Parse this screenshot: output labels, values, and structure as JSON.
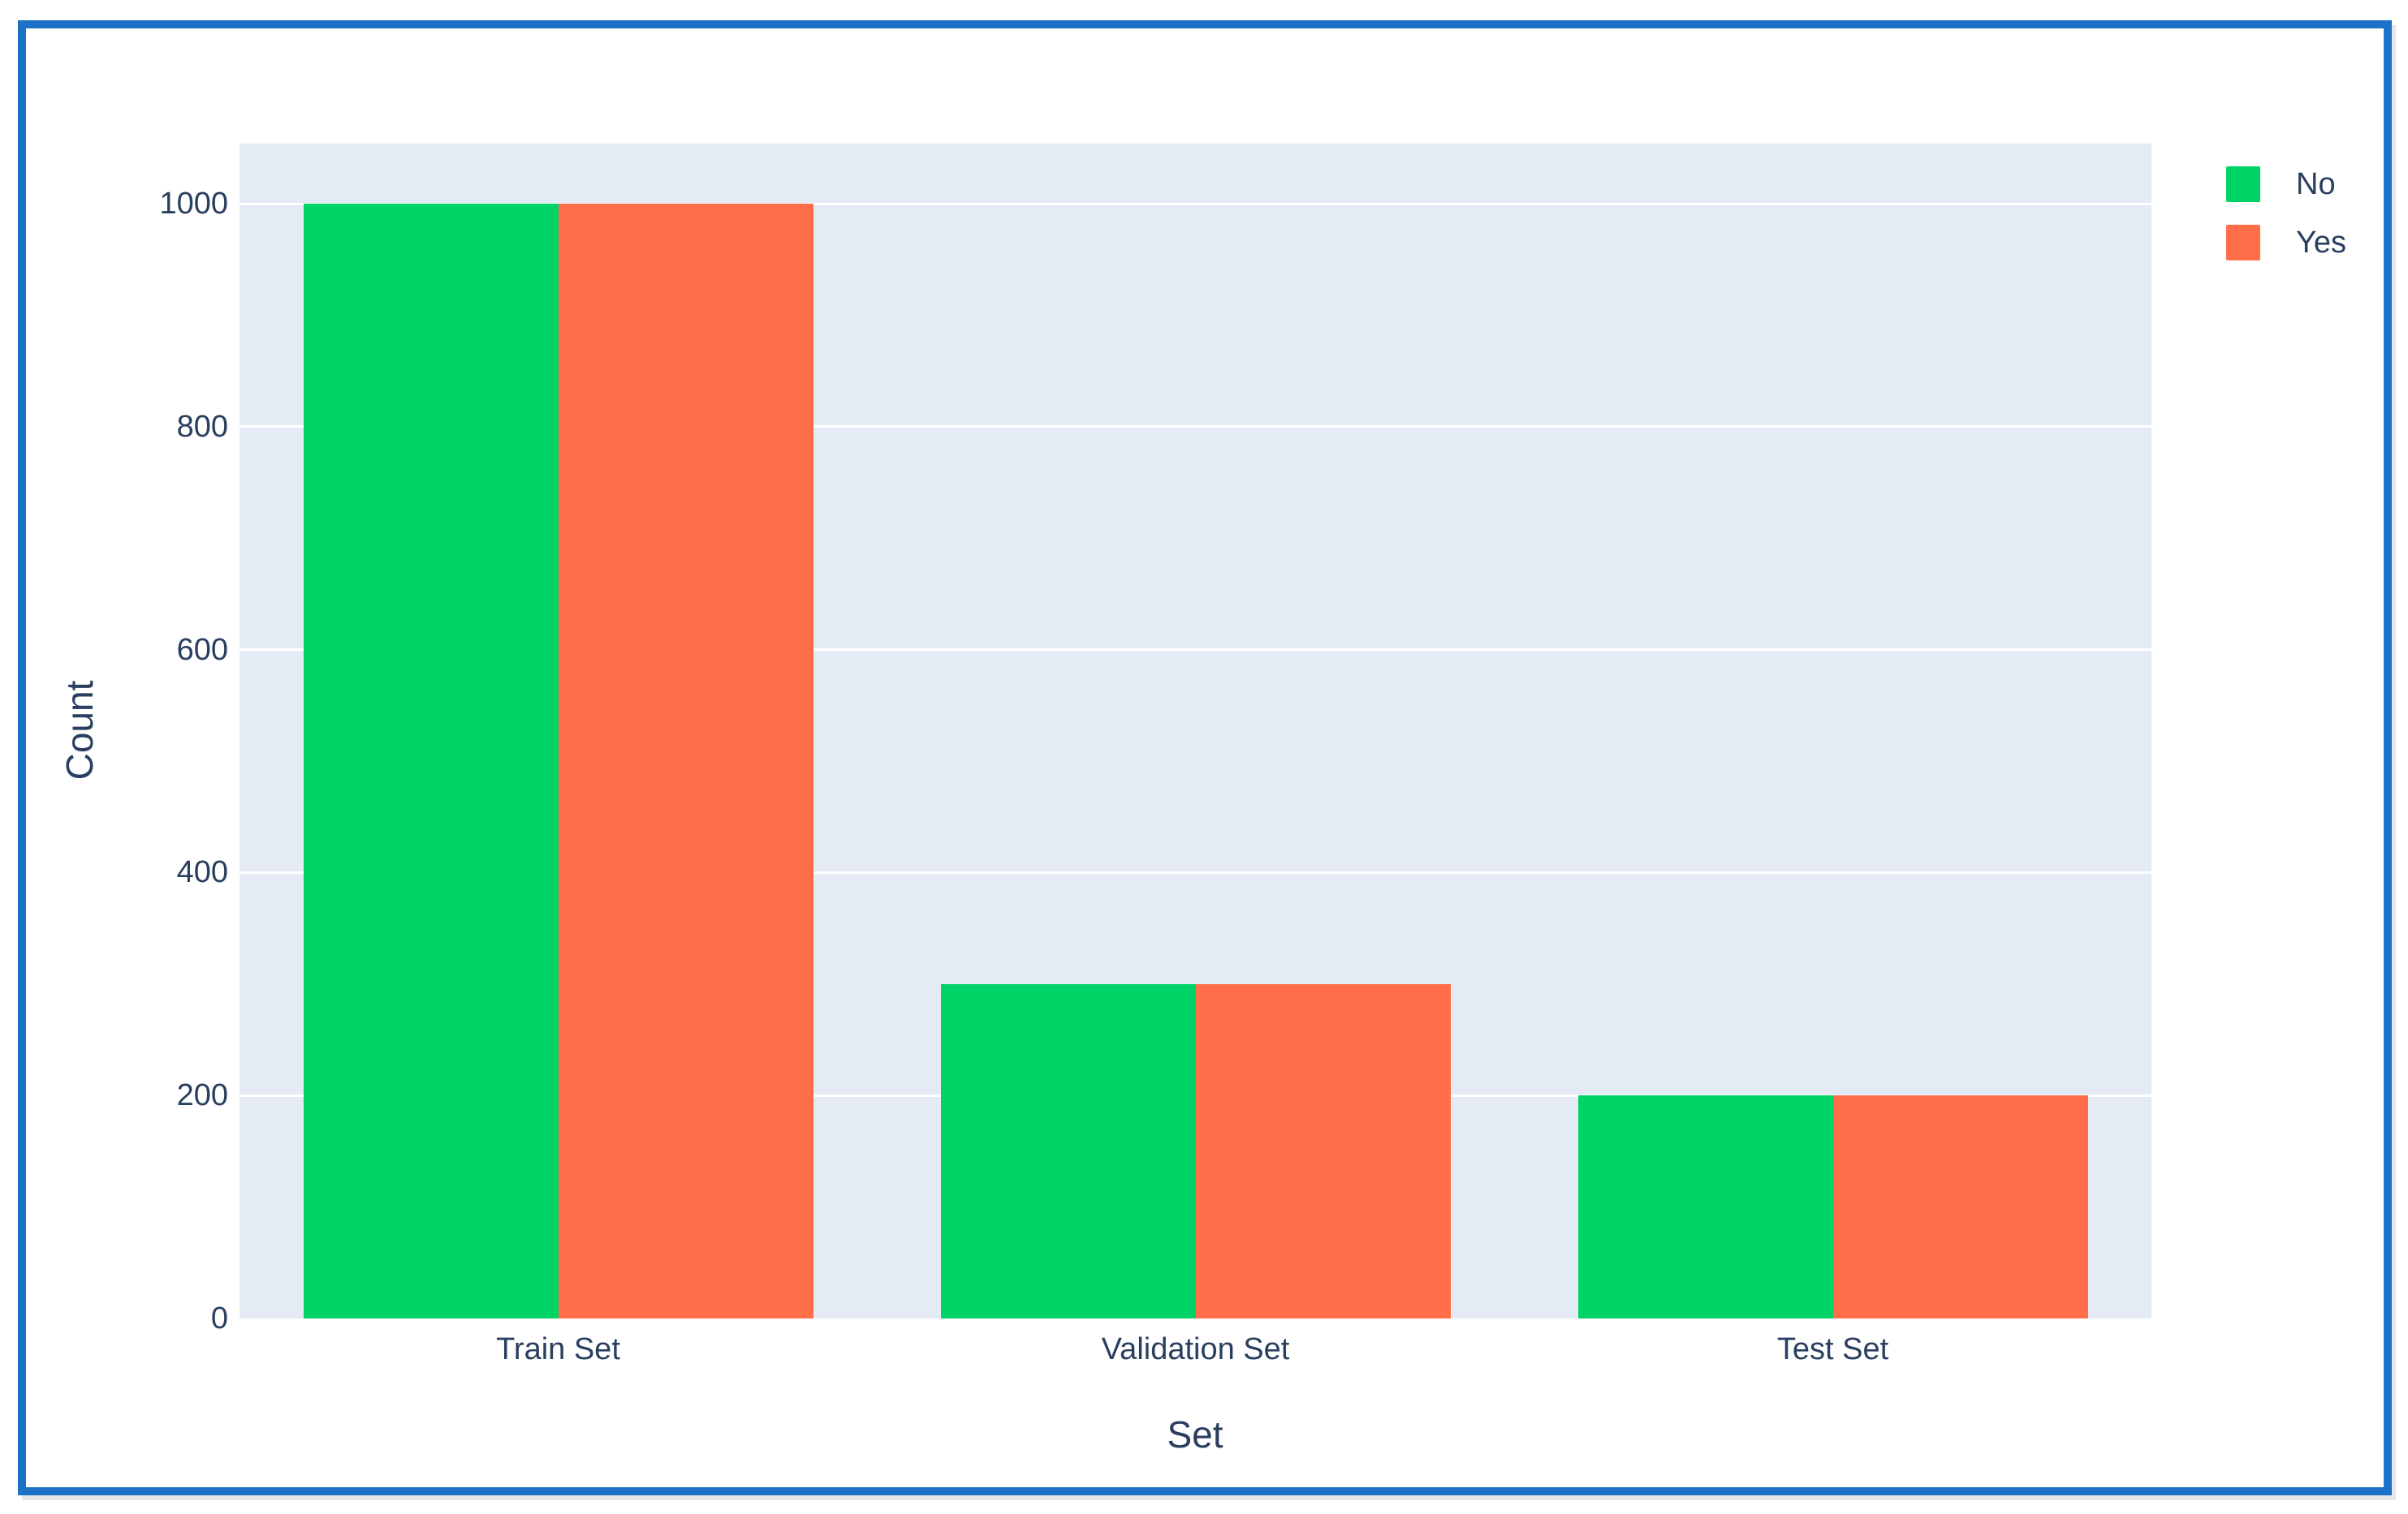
{
  "frame": {
    "border_color": "#1b72c6",
    "background": "#ffffff"
  },
  "chart_data": {
    "type": "bar",
    "title": "",
    "categories": [
      "Train Set",
      "Validation Set",
      "Test Set"
    ],
    "series": [
      {
        "name": "No",
        "color": "#00d466",
        "values": [
          1000,
          300,
          200
        ]
      },
      {
        "name": "Yes",
        "color": "#ff6e49",
        "values": [
          1000,
          300,
          200
        ]
      }
    ],
    "xlabel": "Set",
    "ylabel": "Count",
    "yticks": [
      0,
      200,
      400,
      600,
      800,
      1000
    ],
    "ylim": [
      0,
      1054
    ],
    "grid": "horizontal",
    "gridline_color": "#ffffff",
    "plot_background": "#e4ebf5",
    "text_color": "#2a3f5f",
    "legend_position": "top-right-outside",
    "legend": [
      "No",
      "Yes"
    ]
  }
}
